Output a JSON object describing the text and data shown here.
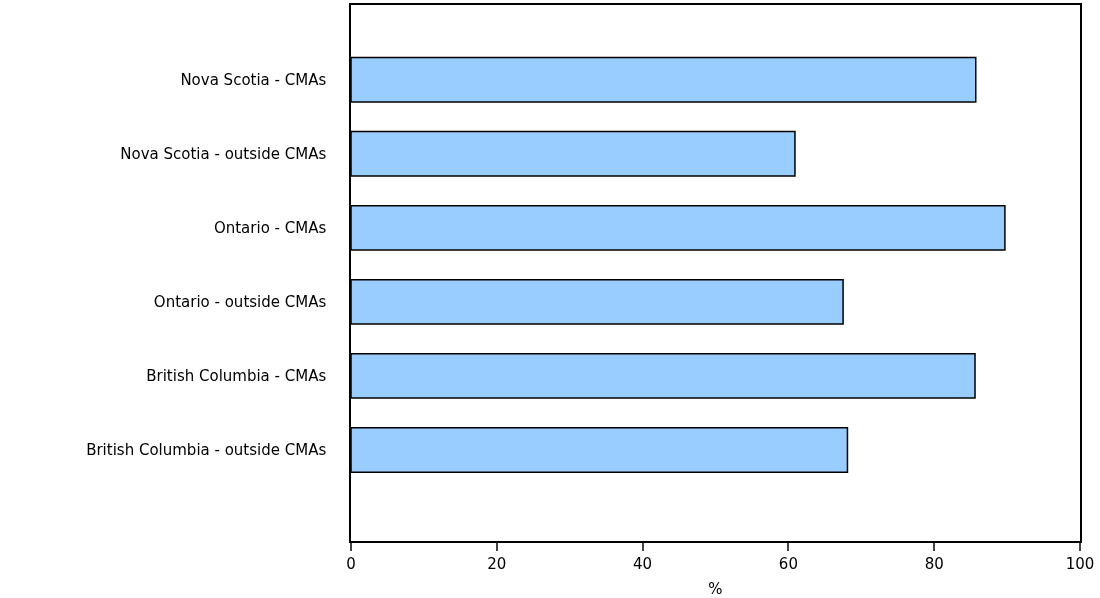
{
  "chart_data": {
    "type": "bar",
    "orientation": "horizontal",
    "xlabel": "%",
    "categories": [
      "Nova Scotia - CMAs",
      "Nova Scotia - outside CMAs",
      "Ontario - CMAs",
      "Ontario - outside CMAs",
      "British Columbia - CMAs",
      "British Columbia - outside CMAs"
    ],
    "values": [
      85.7,
      60.9,
      89.7,
      67.5,
      85.6,
      68.1
    ],
    "color": "#99ccff",
    "xlim": [
      0,
      100
    ],
    "xticks": [
      0,
      20,
      40,
      60,
      80,
      100
    ],
    "grid": false
  }
}
